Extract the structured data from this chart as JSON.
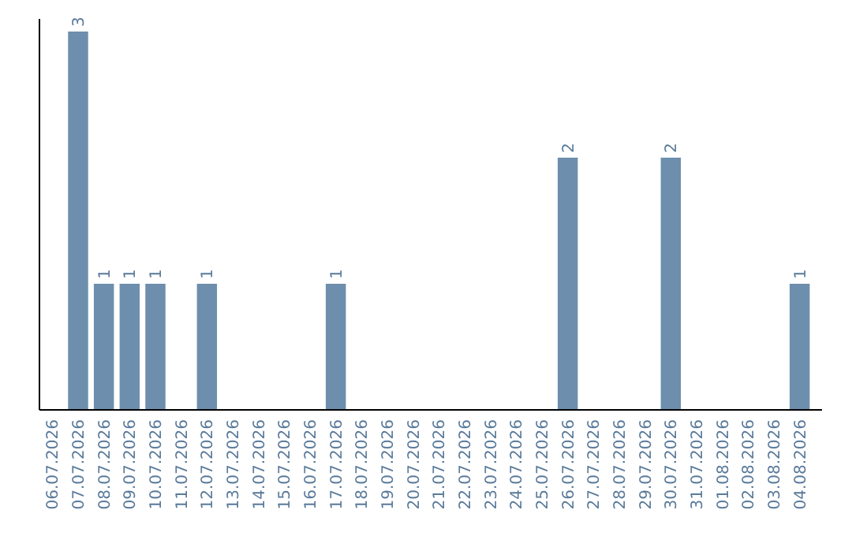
{
  "chart_data": {
    "type": "bar",
    "categories": [
      "06.07.2026",
      "07.07.2026",
      "08.07.2026",
      "09.07.2026",
      "10.07.2026",
      "11.07.2026",
      "12.07.2026",
      "13.07.2026",
      "14.07.2026",
      "15.07.2026",
      "16.07.2026",
      "17.07.2026",
      "18.07.2026",
      "19.07.2026",
      "20.07.2026",
      "21.07.2026",
      "22.07.2026",
      "23.07.2026",
      "24.07.2026",
      "25.07.2026",
      "26.07.2026",
      "27.07.2026",
      "28.07.2026",
      "29.07.2026",
      "30.07.2026",
      "31.07.2026",
      "01.08.2026",
      "02.08.2026",
      "03.08.2026",
      "04.08.2026"
    ],
    "values": [
      0,
      3,
      1,
      1,
      1,
      0,
      1,
      0,
      0,
      0,
      0,
      1,
      0,
      0,
      0,
      0,
      0,
      0,
      0,
      0,
      2,
      0,
      0,
      0,
      2,
      0,
      0,
      0,
      0,
      1
    ],
    "value_labels": [
      null,
      "3",
      "1",
      "1",
      "1",
      null,
      "1",
      null,
      null,
      null,
      null,
      "1",
      null,
      null,
      null,
      null,
      null,
      null,
      null,
      null,
      "2",
      null,
      null,
      null,
      "2",
      null,
      null,
      null,
      null,
      "1"
    ],
    "color": "#6d8fad",
    "tick_labels": "x"
  }
}
